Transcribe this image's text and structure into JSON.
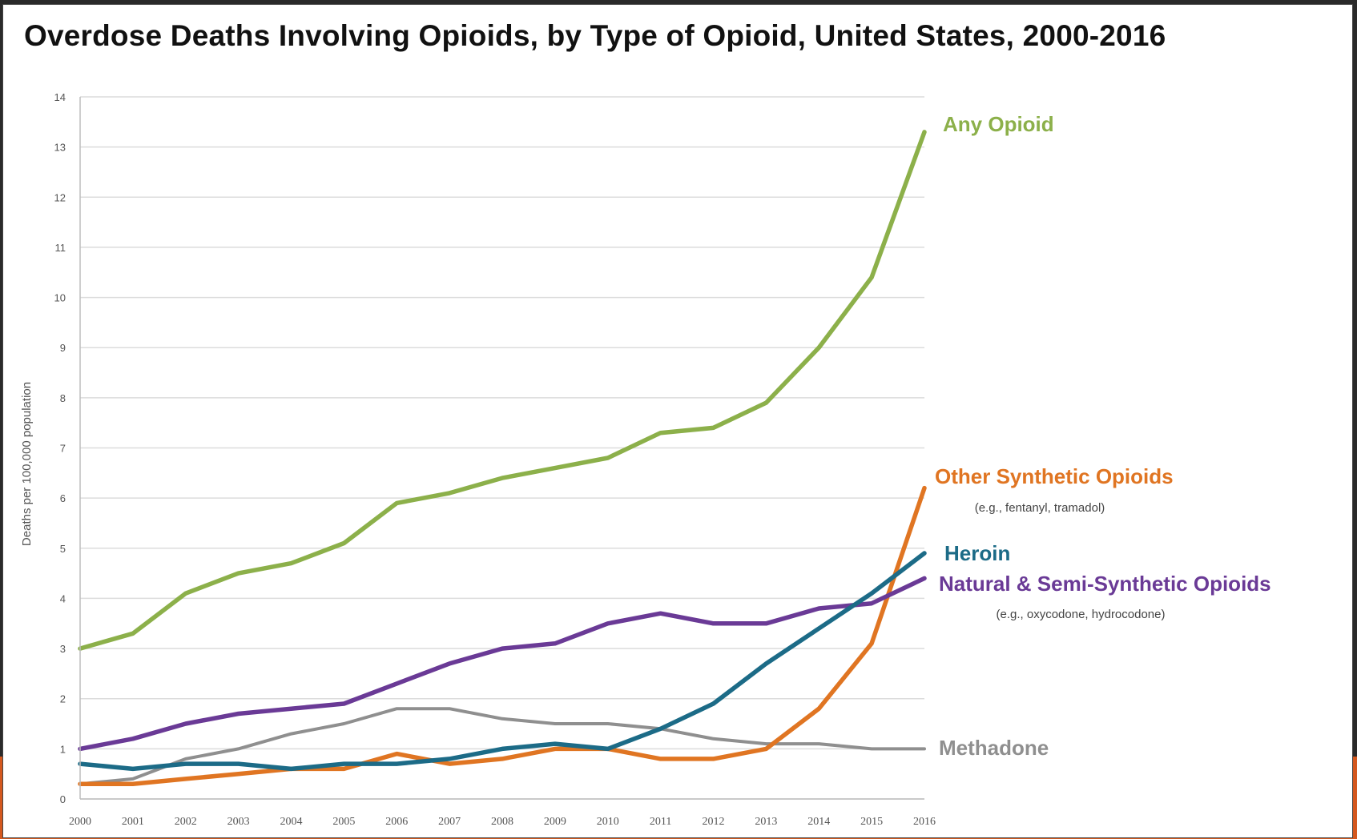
{
  "colors": {
    "any_opioid": "#8cb04a",
    "other_synthetic": "#e07522",
    "heroin": "#1c6b87",
    "natural_semi": "#6a3a96",
    "methadone": "#8f8f8f",
    "accent_bar": "#d4581e"
  },
  "chart_data": {
    "type": "line",
    "title": "Overdose Deaths Involving Opioids, by Type of Opioid, United States, 2000-2016",
    "ylabel": "Deaths per 100,000 population",
    "xlabel": "",
    "ylim": [
      0,
      14
    ],
    "yticks": [
      0,
      1,
      2,
      3,
      4,
      5,
      6,
      7,
      8,
      9,
      10,
      11,
      12,
      13,
      14
    ],
    "grid": true,
    "x": [
      "2000",
      "2001",
      "2002",
      "2003",
      "2004",
      "2005",
      "2006",
      "2007",
      "2008",
      "2009",
      "2010",
      "2011",
      "2012",
      "2013",
      "2014",
      "2015",
      "2016"
    ],
    "series": [
      {
        "key": "any_opioid",
        "name": "Any Opioid",
        "sublabel": "",
        "values": [
          3.0,
          3.3,
          4.1,
          4.5,
          4.7,
          5.1,
          5.9,
          6.1,
          6.4,
          6.6,
          6.8,
          7.3,
          7.4,
          7.9,
          9.0,
          10.4,
          13.3
        ]
      },
      {
        "key": "other_synthetic",
        "name": "Other Synthetic Opioids",
        "sublabel": "(e.g., fentanyl, tramadol)",
        "values": [
          0.3,
          0.3,
          0.4,
          0.5,
          0.6,
          0.6,
          0.9,
          0.7,
          0.8,
          1.0,
          1.0,
          0.8,
          0.8,
          1.0,
          1.8,
          3.1,
          6.2
        ]
      },
      {
        "key": "heroin",
        "name": "Heroin",
        "sublabel": "",
        "values": [
          0.7,
          0.6,
          0.7,
          0.7,
          0.6,
          0.7,
          0.7,
          0.8,
          1.0,
          1.1,
          1.0,
          1.4,
          1.9,
          2.7,
          3.4,
          4.1,
          4.9
        ]
      },
      {
        "key": "natural_semi",
        "name": "Natural & Semi-Synthetic Opioids",
        "sublabel": "(e.g., oxycodone, hydrocodone)",
        "values": [
          1.0,
          1.2,
          1.5,
          1.7,
          1.8,
          1.9,
          2.3,
          2.7,
          3.0,
          3.1,
          3.5,
          3.7,
          3.5,
          3.5,
          3.8,
          3.9,
          4.4
        ]
      },
      {
        "key": "methadone",
        "name": "Methadone",
        "sublabel": "",
        "values": [
          0.3,
          0.4,
          0.8,
          1.0,
          1.3,
          1.5,
          1.8,
          1.8,
          1.6,
          1.5,
          1.5,
          1.4,
          1.2,
          1.1,
          1.1,
          1.0,
          1.0
        ]
      }
    ]
  }
}
